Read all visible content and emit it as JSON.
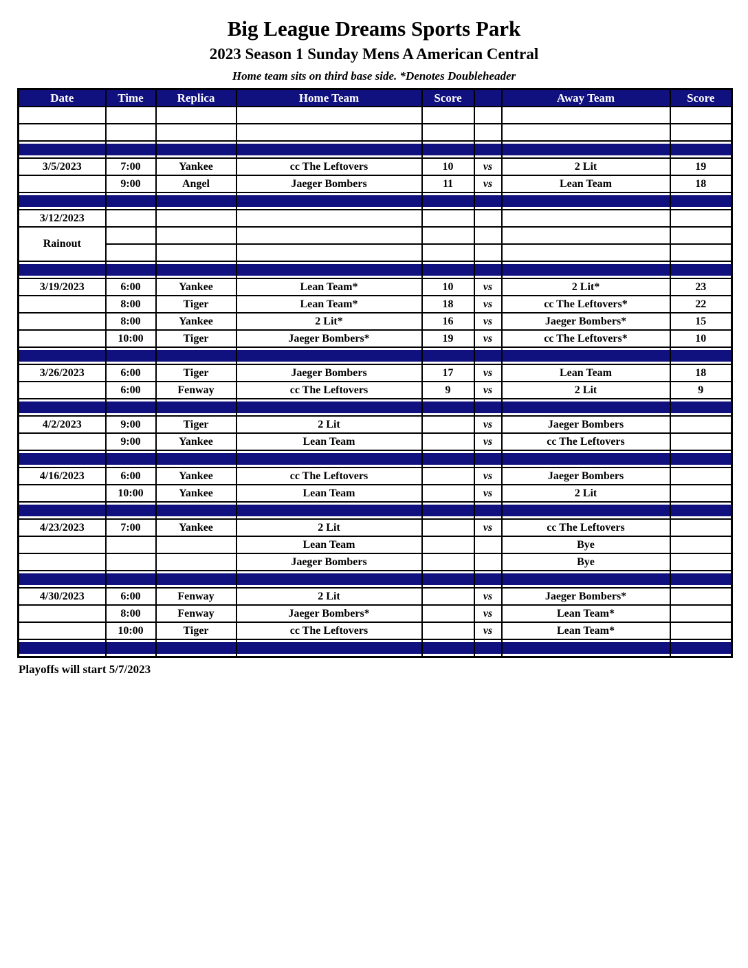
{
  "title": "Big League Dreams Sports Park",
  "subtitle": "2023 Season 1 Sunday Mens A American Central",
  "note": "Home team sits on third base side.  *Denotes Doubleheader",
  "footer": "Playoffs will start 5/7/2023",
  "colors": {
    "navy": "#10107E",
    "yellow": "#FFFF00",
    "rainout_text": "#191980",
    "header_text": "#FFFFFF"
  },
  "columns": [
    "Date",
    "Time",
    "Replica",
    "Home Team",
    "Score",
    "",
    "Away Team",
    "Score"
  ],
  "rows": [
    {
      "type": "empty"
    },
    {
      "type": "empty"
    },
    {
      "type": "sep"
    },
    {
      "type": "game",
      "date": "3/5/2023",
      "time": "7:00",
      "replica": "Yankee",
      "home": "cc The Leftovers",
      "hscore": "10",
      "vs": "vs",
      "away": "2 Lit",
      "ascore": "19",
      "hl": "away"
    },
    {
      "type": "game",
      "date": "",
      "time": "9:00",
      "replica": "Angel",
      "home": "Jaeger Bombers",
      "hscore": "11",
      "vs": "vs",
      "away": "Lean Team",
      "ascore": "18",
      "hl": "away"
    },
    {
      "type": "sep"
    },
    {
      "type": "game",
      "date": "3/12/2023",
      "time": "",
      "replica": "",
      "home": "",
      "hscore": "",
      "vs": "",
      "away": "",
      "ascore": "",
      "hl": "none"
    },
    {
      "type": "rainout_top",
      "date": "Rainout"
    },
    {
      "type": "rainout_bottom"
    },
    {
      "type": "sep"
    },
    {
      "type": "game",
      "date": "3/19/2023",
      "time": "6:00",
      "replica": "Yankee",
      "home": "Lean Team*",
      "hscore": "10",
      "vs": "vs",
      "away": "2 Lit*",
      "ascore": "23",
      "hl": "away"
    },
    {
      "type": "game",
      "date": "",
      "time": "8:00",
      "replica": "Tiger",
      "home": "Lean Team*",
      "hscore": "18",
      "vs": "vs",
      "away": "cc The Leftovers*",
      "ascore": "22",
      "hl": "away"
    },
    {
      "type": "game",
      "date": "",
      "time": "8:00",
      "replica": "Yankee",
      "home": "2 Lit*",
      "hscore": "16",
      "vs": "vs",
      "away": "Jaeger Bombers*",
      "ascore": "15",
      "hl": "home"
    },
    {
      "type": "game",
      "date": "",
      "time": "10:00",
      "replica": "Tiger",
      "home": "Jaeger Bombers*",
      "hscore": "19",
      "vs": "vs",
      "away": "cc The Leftovers*",
      "ascore": "10",
      "hl": "home"
    },
    {
      "type": "sep"
    },
    {
      "type": "game",
      "date": "3/26/2023",
      "time": "6:00",
      "replica": "Tiger",
      "home": "Jaeger Bombers",
      "hscore": "17",
      "vs": "vs",
      "away": "Lean Team",
      "ascore": "18",
      "hl": "away"
    },
    {
      "type": "game",
      "date": "",
      "time": "6:00",
      "replica": "Fenway",
      "home": "cc The Leftovers",
      "hscore": "9",
      "vs": "vs",
      "away": "2 Lit",
      "ascore": "9",
      "hl": "both"
    },
    {
      "type": "sep"
    },
    {
      "type": "game",
      "date": "4/2/2023",
      "time": "9:00",
      "replica": "Tiger",
      "home": "2 Lit",
      "hscore": "",
      "vs": "vs",
      "away": "Jaeger Bombers",
      "ascore": "",
      "hl": "none"
    },
    {
      "type": "game",
      "date": "",
      "time": "9:00",
      "replica": "Yankee",
      "home": "Lean Team",
      "hscore": "",
      "vs": "vs",
      "away": "cc The Leftovers",
      "ascore": "",
      "hl": "none"
    },
    {
      "type": "sep"
    },
    {
      "type": "game",
      "date": "4/16/2023",
      "time": "6:00",
      "replica": "Yankee",
      "home": "cc The Leftovers",
      "hscore": "",
      "vs": "vs",
      "away": "Jaeger Bombers",
      "ascore": "",
      "hl": "none"
    },
    {
      "type": "game",
      "date": "",
      "time": "10:00",
      "replica": "Yankee",
      "home": "Lean Team",
      "hscore": "",
      "vs": "vs",
      "away": "2 Lit",
      "ascore": "",
      "hl": "none"
    },
    {
      "type": "sep"
    },
    {
      "type": "game",
      "date": "4/23/2023",
      "time": "7:00",
      "replica": "Yankee",
      "home": "2 Lit",
      "hscore": "",
      "vs": "vs",
      "away": "cc The Leftovers",
      "ascore": "",
      "hl": "none"
    },
    {
      "type": "game",
      "date": "",
      "time": "",
      "replica": "",
      "home": "Lean Team",
      "hscore": "",
      "vs": "",
      "away": "Bye",
      "ascore": "",
      "hl": "none"
    },
    {
      "type": "game",
      "date": "",
      "time": "",
      "replica": "",
      "home": "Jaeger Bombers",
      "hscore": "",
      "vs": "",
      "away": "Bye",
      "ascore": "",
      "hl": "none"
    },
    {
      "type": "sep"
    },
    {
      "type": "game",
      "date": "4/30/2023",
      "time": "6:00",
      "replica": "Fenway",
      "home": "2 Lit",
      "hscore": "",
      "vs": "vs",
      "away": "Jaeger Bombers*",
      "ascore": "",
      "hl": "none"
    },
    {
      "type": "game",
      "date": "",
      "time": "8:00",
      "replica": "Fenway",
      "home": "Jaeger Bombers*",
      "hscore": "",
      "vs": "vs",
      "away": "Lean Team*",
      "ascore": "",
      "hl": "none"
    },
    {
      "type": "game",
      "date": "",
      "time": "10:00",
      "replica": "Tiger",
      "home": "cc The Leftovers",
      "hscore": "",
      "vs": "vs",
      "away": "Lean Team*",
      "ascore": "",
      "hl": "none"
    },
    {
      "type": "sep"
    }
  ]
}
